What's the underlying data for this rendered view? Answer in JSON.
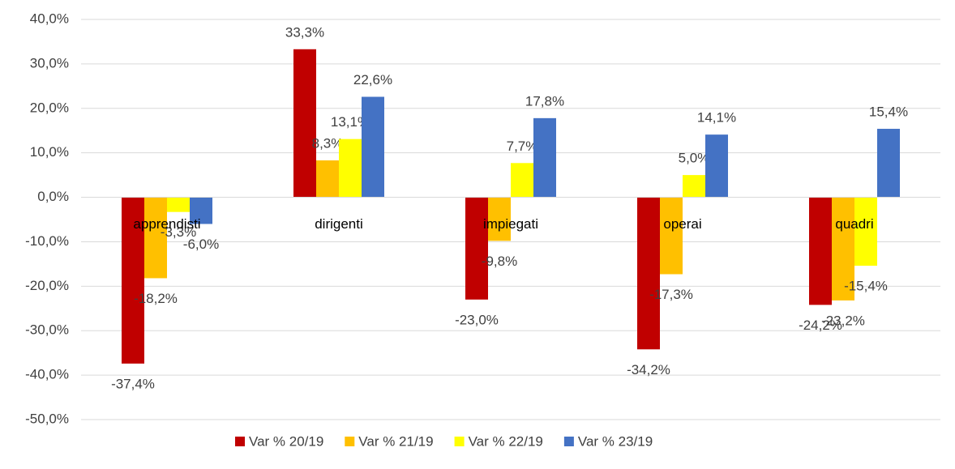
{
  "chart_data": {
    "type": "bar",
    "categories": [
      "apprendisti",
      "dirigenti",
      "impiegati",
      "operai",
      "quadri"
    ],
    "series": [
      {
        "name": "Var % 20/19",
        "color": "#c00000",
        "values": [
          -37.4,
          33.3,
          -23.0,
          -34.2,
          -24.2
        ],
        "value_labels": [
          "-37,4%",
          "33,3%",
          "-23,0%",
          "-34,2%",
          "-24,2%"
        ]
      },
      {
        "name": "Var % 21/19",
        "color": "#ffc000",
        "values": [
          -18.2,
          8.3,
          -9.8,
          -17.3,
          -23.2
        ],
        "value_labels": [
          "-18,2%",
          "8,3%",
          "-9,8%",
          "-17,3%",
          "-23,2%"
        ]
      },
      {
        "name": "Var % 22/19",
        "color": "#ffff00",
        "values": [
          -3.3,
          13.1,
          7.7,
          5.0,
          -15.4
        ],
        "value_labels": [
          "-3,3%",
          "13,1%",
          "7,7%",
          "5,0%",
          "-15,4%"
        ]
      },
      {
        "name": "Var % 23/19",
        "color": "#4472c4",
        "values": [
          -6.0,
          22.6,
          17.8,
          14.1,
          15.4
        ],
        "value_labels": [
          "-6,0%",
          "22,6%",
          "17,8%",
          "14,1%",
          "15,4%"
        ]
      }
    ],
    "ylim": [
      -50,
      40
    ],
    "yticks": [
      {
        "value": -50,
        "label": "-50,0%"
      },
      {
        "value": -40,
        "label": "-40,0%"
      },
      {
        "value": -30,
        "label": "-30,0%"
      },
      {
        "value": -20,
        "label": "-20,0%"
      },
      {
        "value": -10,
        "label": "-10,0%"
      },
      {
        "value": 0,
        "label": "0,0%"
      },
      {
        "value": 10,
        "label": "10,0%"
      },
      {
        "value": 20,
        "label": "20,0%"
      },
      {
        "value": 30,
        "label": "30,0%"
      },
      {
        "value": 40,
        "label": "40,0%"
      }
    ],
    "grid": true,
    "legend": "bottom"
  }
}
